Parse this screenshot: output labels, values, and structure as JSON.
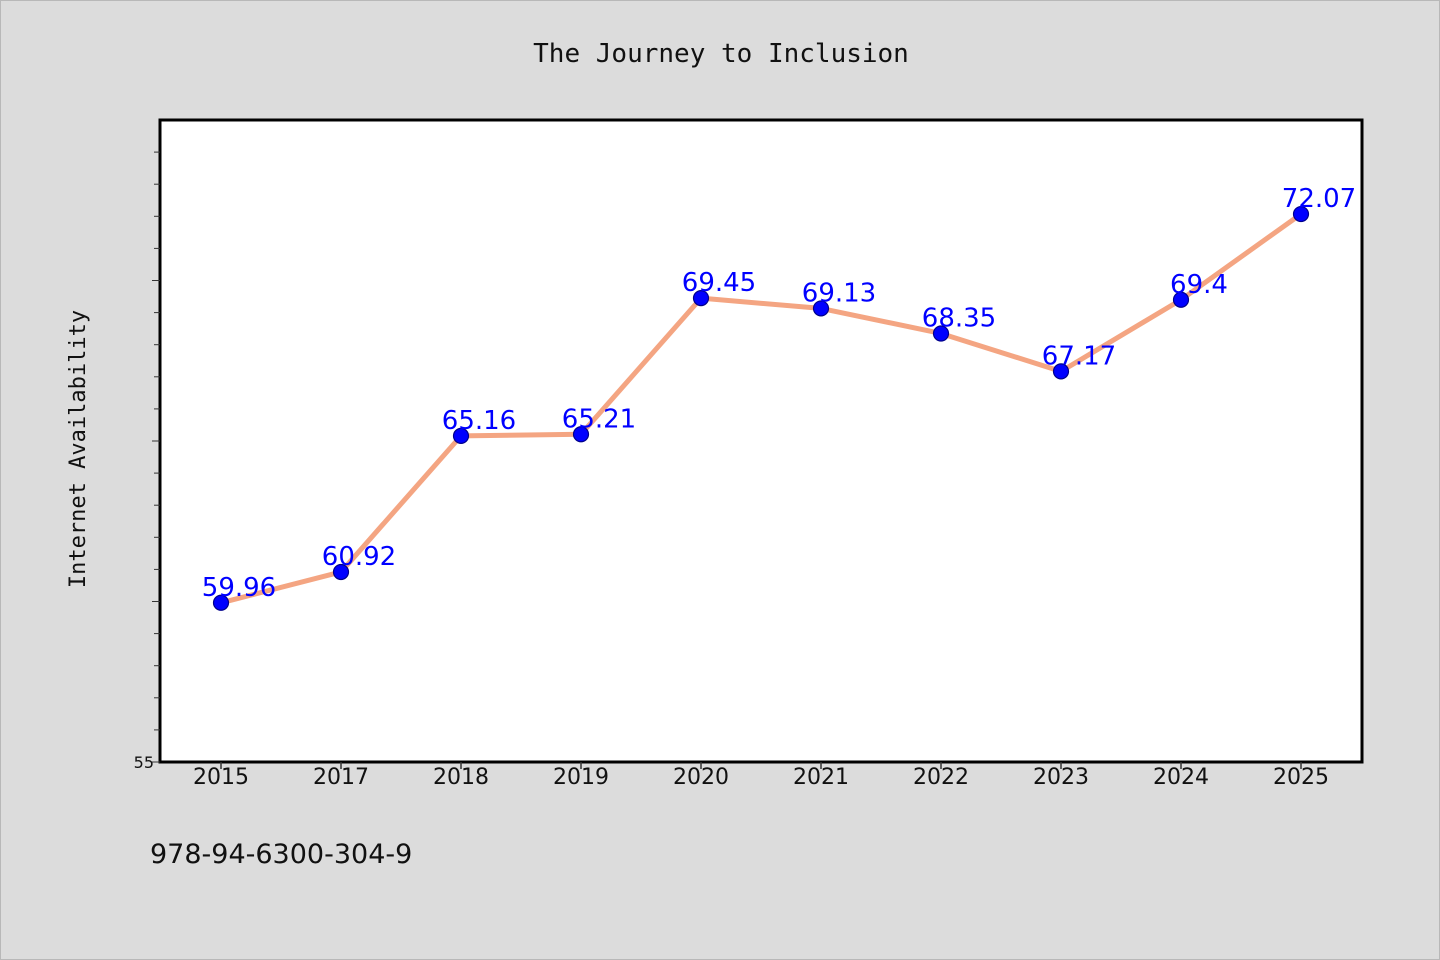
{
  "footer": {
    "isbn": "978-94-6300-304-9"
  },
  "chart_data": {
    "type": "line",
    "title": "The Journey to Inclusion",
    "xlabel": "",
    "ylabel": "Internet Availability",
    "categories": [
      "2015",
      "2017",
      "2018",
      "2019",
      "2020",
      "2021",
      "2022",
      "2023",
      "2024",
      "2025"
    ],
    "series": [
      {
        "values": [
          59.96,
          60.92,
          65.16,
          65.21,
          69.45,
          69.13,
          68.35,
          67.17,
          69.4,
          72.07
        ],
        "labels": [
          "59.96",
          "60.92",
          "65.16",
          "65.21",
          "69.45",
          "69.13",
          "68.35",
          "67.17",
          "69.4",
          "72.07"
        ]
      }
    ],
    "ylim": [
      55,
      75
    ],
    "yticks_labeled": [
      "55"
    ],
    "yticks_minor_step": 1,
    "grid": false,
    "legend": "none",
    "colors": {
      "line": "#f4a582",
      "marker_fill": "#0000ff",
      "marker_stroke": "#00008b",
      "data_label": "#0000ff",
      "plot_background": "#ffffff",
      "figure_background": "#dcdcdc"
    }
  }
}
